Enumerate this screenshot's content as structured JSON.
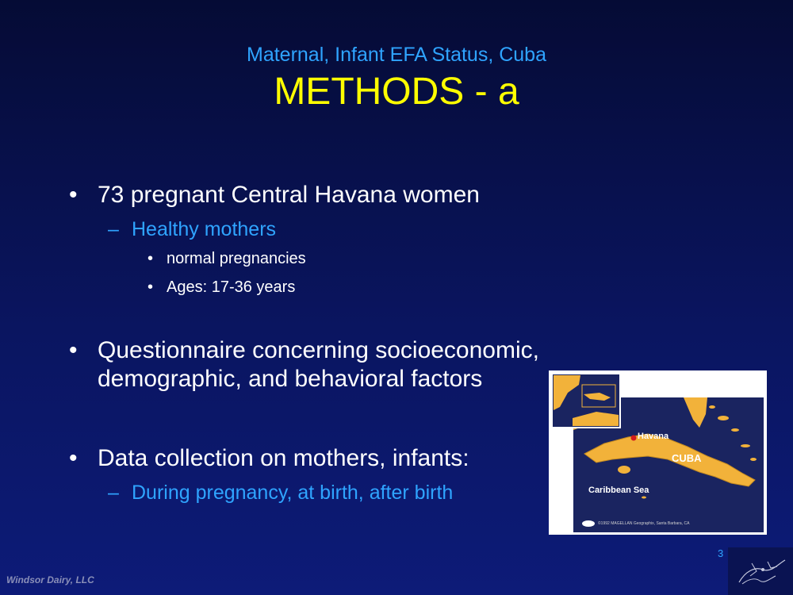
{
  "slide": {
    "subtitle": "Maternal, Infant EFA Status, Cuba",
    "title": "METHODS - a",
    "page_number": "3",
    "footer": "Windsor Dairy, LLC"
  },
  "bullets": [
    {
      "text": "73 pregnant Central Havana women",
      "sub": {
        "text": "Healthy mothers",
        "items": [
          "normal pregnancies",
          "Ages: 17-36 years"
        ]
      }
    },
    {
      "line1": "Questionnaire concerning socioeconomic,",
      "line2": "demographic, and behavioral factors"
    },
    {
      "text": "Data collection on mothers, infants:",
      "sub": {
        "text": "During pregnancy, at birth, after birth"
      }
    }
  ],
  "markers": {
    "bullet": "•",
    "dash": "–"
  },
  "map": {
    "label_havana": "Havana",
    "label_cuba": "CUBA",
    "label_sea": "Caribbean Sea",
    "copyright": "©1992 MAGELLAN Geographix, Santa Barbara, CA"
  },
  "colors": {
    "title": "#ffff00",
    "subtitle": "#2fa4ff",
    "text": "#ffffff",
    "sea": "#1a2460",
    "land": "#f2b23a"
  }
}
